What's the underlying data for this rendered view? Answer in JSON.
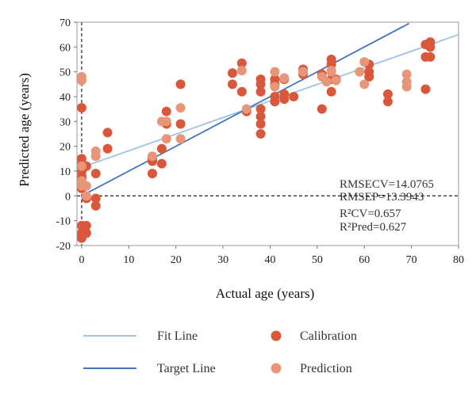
{
  "colors": {
    "fit_line": "#9dc3e6",
    "target_line": "#4472c4",
    "calibration": "#d9573b",
    "prediction": "#e8967a",
    "zero_lines": "#333333",
    "grid": "#d9d9d9"
  },
  "chart_data": {
    "type": "scatter",
    "xlabel": "Actual age (years)",
    "ylabel": "Predicted age (years)",
    "xlim": [
      -1,
      80
    ],
    "ylim": [
      -20,
      70
    ],
    "xticks": [
      0,
      10,
      20,
      30,
      40,
      50,
      60,
      70,
      80
    ],
    "yticks": [
      -20,
      -10,
      0,
      10,
      20,
      30,
      40,
      50,
      60,
      70
    ],
    "grid": false,
    "legend_position": "bottom",
    "annotations": [
      "RMSECV=14.0765",
      "RMSEP=13.3943",
      "R²CV=0.657",
      "R²Pred=0.627"
    ],
    "lines": [
      {
        "name": "Fit Line",
        "points": [
          [
            0,
            11.5
          ],
          [
            80,
            65
          ]
        ]
      },
      {
        "name": "Target Line",
        "points": [
          [
            0,
            0
          ],
          [
            69.5,
            69.5
          ]
        ]
      }
    ],
    "reference_lines": {
      "horizontal_y": 0,
      "vertical_x": 0
    },
    "series": [
      {
        "name": "Calibration",
        "points": [
          [
            0,
            35.5
          ],
          [
            0,
            15
          ],
          [
            0,
            13
          ],
          [
            0,
            10
          ],
          [
            0,
            8
          ],
          [
            0,
            7
          ],
          [
            0,
            5
          ],
          [
            0,
            3
          ],
          [
            0,
            -12
          ],
          [
            0,
            -15
          ],
          [
            0,
            -17
          ],
          [
            1,
            -12
          ],
          [
            1,
            -15
          ],
          [
            1,
            -1
          ],
          [
            1,
            12
          ],
          [
            3,
            9
          ],
          [
            3,
            -1
          ],
          [
            3,
            -4
          ],
          [
            5.5,
            25.5
          ],
          [
            5.5,
            19
          ],
          [
            15,
            15
          ],
          [
            15,
            14
          ],
          [
            15,
            9
          ],
          [
            17,
            19
          ],
          [
            17,
            13
          ],
          [
            18,
            29
          ],
          [
            18,
            34
          ],
          [
            21,
            45
          ],
          [
            21,
            29
          ],
          [
            32,
            49.5
          ],
          [
            32,
            45
          ],
          [
            34,
            53.5
          ],
          [
            34,
            42
          ],
          [
            35,
            34
          ],
          [
            38,
            47
          ],
          [
            38,
            45
          ],
          [
            38,
            42
          ],
          [
            38,
            35
          ],
          [
            38,
            32
          ],
          [
            38,
            29
          ],
          [
            38,
            25
          ],
          [
            41,
            47
          ],
          [
            41,
            45
          ],
          [
            41,
            40
          ],
          [
            41,
            38
          ],
          [
            43,
            47
          ],
          [
            43,
            41
          ],
          [
            43,
            39
          ],
          [
            45,
            40
          ],
          [
            47,
            51
          ],
          [
            47,
            49
          ],
          [
            51,
            49
          ],
          [
            51,
            35
          ],
          [
            53,
            55
          ],
          [
            53,
            53
          ],
          [
            53,
            47
          ],
          [
            53,
            42
          ],
          [
            54,
            47
          ],
          [
            61,
            53
          ],
          [
            61,
            50
          ],
          [
            61,
            48
          ],
          [
            65,
            41
          ],
          [
            65,
            38
          ],
          [
            73,
            61
          ],
          [
            73,
            56
          ],
          [
            73,
            43
          ],
          [
            74,
            62
          ],
          [
            74,
            60
          ],
          [
            74,
            56
          ]
        ]
      },
      {
        "name": "Prediction",
        "points": [
          [
            0,
            48
          ],
          [
            0,
            46.5
          ],
          [
            0,
            12
          ],
          [
            0,
            6
          ],
          [
            0,
            4
          ],
          [
            1,
            4
          ],
          [
            1,
            0
          ],
          [
            3,
            18
          ],
          [
            3,
            16
          ],
          [
            15,
            16
          ],
          [
            17,
            30
          ],
          [
            18,
            30
          ],
          [
            18,
            23
          ],
          [
            21,
            35.5
          ],
          [
            21,
            23
          ],
          [
            34,
            50.5
          ],
          [
            35,
            35
          ],
          [
            41,
            50
          ],
          [
            41,
            44
          ],
          [
            43,
            47.5
          ],
          [
            47,
            50
          ],
          [
            51,
            48
          ],
          [
            52,
            46
          ],
          [
            53,
            50.5
          ],
          [
            53,
            50
          ],
          [
            54,
            46.5
          ],
          [
            59,
            50
          ],
          [
            60,
            54
          ],
          [
            60,
            45
          ],
          [
            69,
            49
          ],
          [
            69,
            46
          ],
          [
            69,
            44
          ]
        ]
      }
    ]
  },
  "legend": [
    {
      "label": "Fit Line",
      "kind": "line",
      "color_key": "fit_line"
    },
    {
      "label": "Calibration",
      "kind": "marker",
      "color_key": "calibration"
    },
    {
      "label": "Target Line",
      "kind": "line",
      "color_key": "target_line"
    },
    {
      "label": "Prediction",
      "kind": "marker",
      "color_key": "prediction"
    }
  ]
}
